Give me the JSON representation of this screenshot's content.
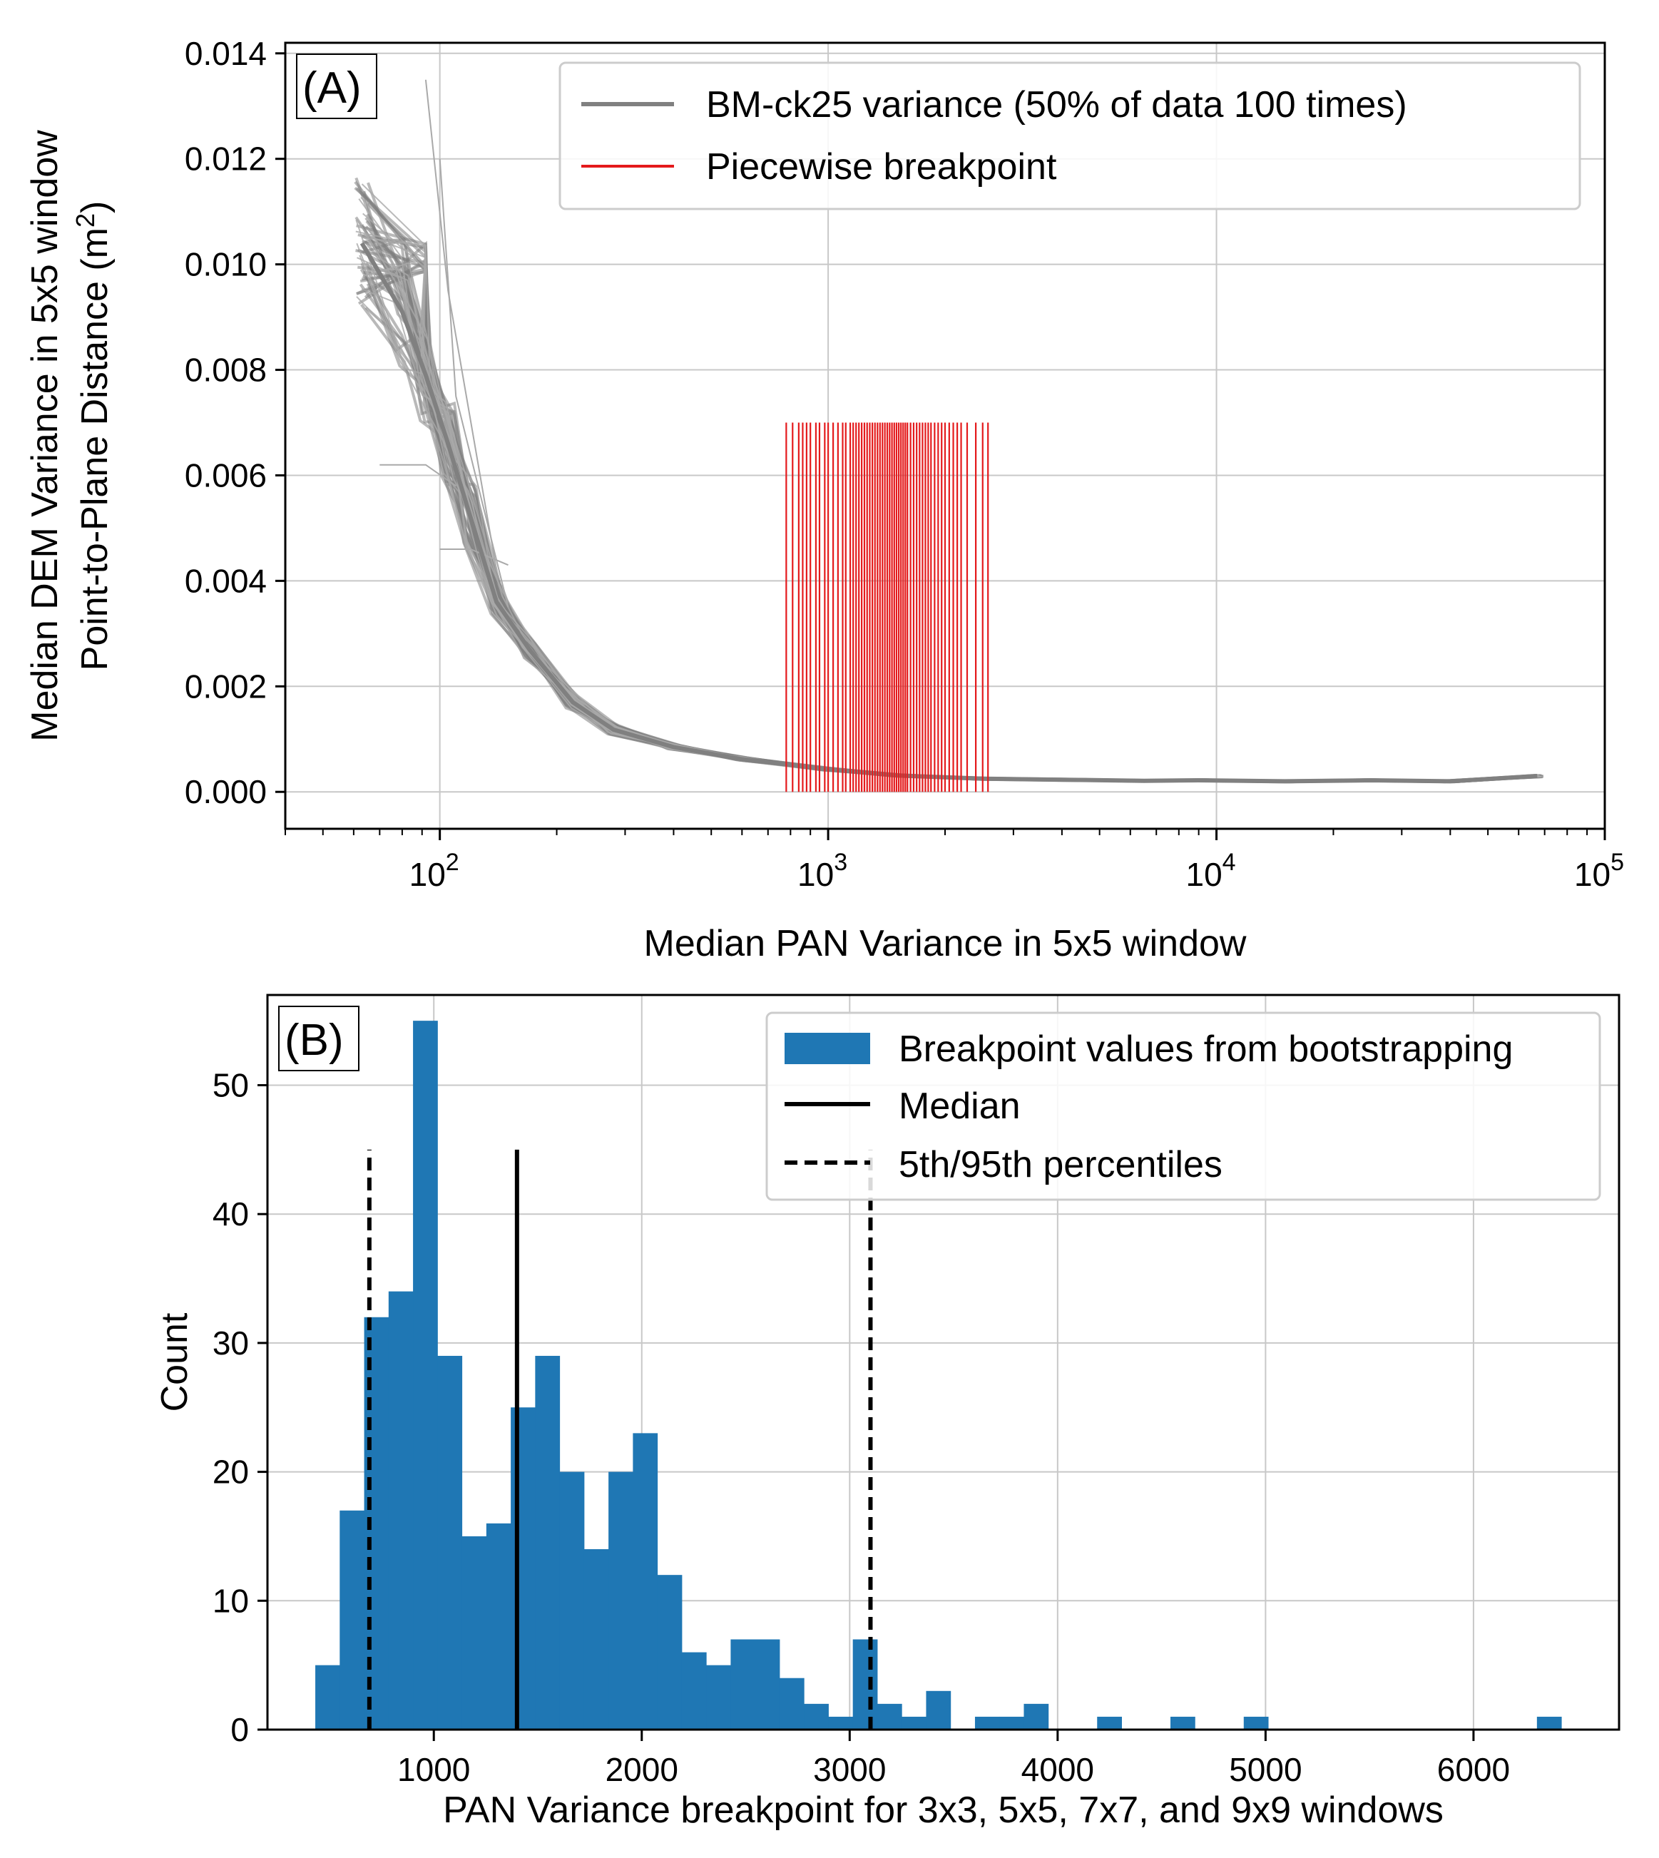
{
  "colors": {
    "gray_line": "#808080",
    "gray_thin": "#a9a9a9",
    "breakpoint_red": "#e41a1c",
    "hist_blue": "#1f77b4",
    "median_black": "#000000",
    "grid": "#c8c8c8"
  },
  "chart_data": [
    {
      "panel": "A",
      "type": "line",
      "panel_label": "(A)",
      "xlabel": "Median PAN Variance in 5x5 window",
      "ylabel_line1": "Median DEM Variance in 5x5 window",
      "ylabel_line2": "Point-to-Plane Distance (m",
      "ylabel_sup": "2",
      "ylabel_end": ")",
      "xscale": "log",
      "xlim": [
        40,
        100000
      ],
      "ylim": [
        -0.0007,
        0.0142
      ],
      "xticks": [
        {
          "value": 100,
          "base": "10",
          "exp": "2"
        },
        {
          "value": 1000,
          "base": "10",
          "exp": "3"
        },
        {
          "value": 10000,
          "base": "10",
          "exp": "4"
        },
        {
          "value": 100000,
          "base": "10",
          "exp": "5"
        }
      ],
      "yticks": [
        "0.000",
        "0.002",
        "0.004",
        "0.006",
        "0.008",
        "0.010",
        "0.012",
        "0.014"
      ],
      "ytick_values": [
        0,
        0.002,
        0.004,
        0.006,
        0.008,
        0.01,
        0.012,
        0.014
      ],
      "grid": true,
      "legend_position": "top-right",
      "legend": [
        {
          "label": "BM-ck25 variance (50% of data 100 times)",
          "style": "gray-line"
        },
        {
          "label": "Piecewise breakpoint",
          "style": "red-line"
        }
      ],
      "variance_curve_median": {
        "x": [
          63,
          80,
          92,
          105,
          120,
          140,
          170,
          220,
          280,
          400,
          600,
          1000,
          1500,
          2500,
          4000,
          6500,
          9000,
          15000,
          25000,
          40000,
          67000
        ],
        "y": [
          0.0104,
          0.0091,
          0.0079,
          0.0066,
          0.0052,
          0.0036,
          0.0027,
          0.0017,
          0.00118,
          0.00085,
          0.00062,
          0.00043,
          0.00031,
          0.00025,
          0.00023,
          0.00021,
          0.00022,
          0.0002,
          0.00022,
          0.0002,
          0.0003
        ]
      },
      "breakpoints": {
        "ymin": 0.0,
        "ymax": 0.007,
        "x": [
          780,
          810,
          840,
          860,
          880,
          900,
          930,
          950,
          980,
          1000,
          1030,
          1060,
          1090,
          1110,
          1140,
          1160,
          1180,
          1200,
          1220,
          1240,
          1260,
          1280,
          1300,
          1320,
          1340,
          1360,
          1380,
          1400,
          1420,
          1440,
          1460,
          1480,
          1500,
          1520,
          1540,
          1560,
          1580,
          1600,
          1630,
          1660,
          1690,
          1720,
          1750,
          1780,
          1810,
          1840,
          1880,
          1920,
          1960,
          2000,
          2050,
          2100,
          2150,
          2200,
          2280,
          2400,
          2500,
          2580
        ]
      }
    },
    {
      "panel": "B",
      "type": "bar",
      "panel_label": "(B)",
      "xlabel": "PAN Variance breakpoint for 3x3, 5x5, 7x7, and 9x9 windows",
      "ylabel": "Count",
      "xlim": [
        200,
        6700
      ],
      "ylim": [
        0,
        57
      ],
      "xticks": [
        1000,
        2000,
        3000,
        4000,
        5000,
        6000
      ],
      "yticks": [
        0,
        10,
        20,
        30,
        40,
        50
      ],
      "grid": true,
      "legend_position": "top-right",
      "legend": [
        {
          "label": "Breakpoint values from bootstrapping",
          "style": "blue-patch"
        },
        {
          "label": "Median",
          "style": "solid-black"
        },
        {
          "label": "5th/95th percentiles",
          "style": "dashed-black"
        }
      ],
      "bin_edges_start": 430,
      "bin_width": 117.5,
      "counts": [
        5,
        17,
        32,
        34,
        55,
        29,
        15,
        16,
        25,
        29,
        20,
        14,
        20,
        23,
        12,
        6,
        5,
        7,
        7,
        4,
        2,
        1,
        7,
        2,
        1,
        3,
        0,
        1,
        1,
        2,
        0,
        0,
        1,
        0,
        0,
        1,
        0,
        0,
        1,
        0,
        0,
        0,
        0,
        0,
        0,
        0,
        0,
        0,
        0,
        0,
        1
      ],
      "median": 1400,
      "percentile_5": 690,
      "percentile_95": 3100,
      "reference_line_top": 45
    }
  ]
}
